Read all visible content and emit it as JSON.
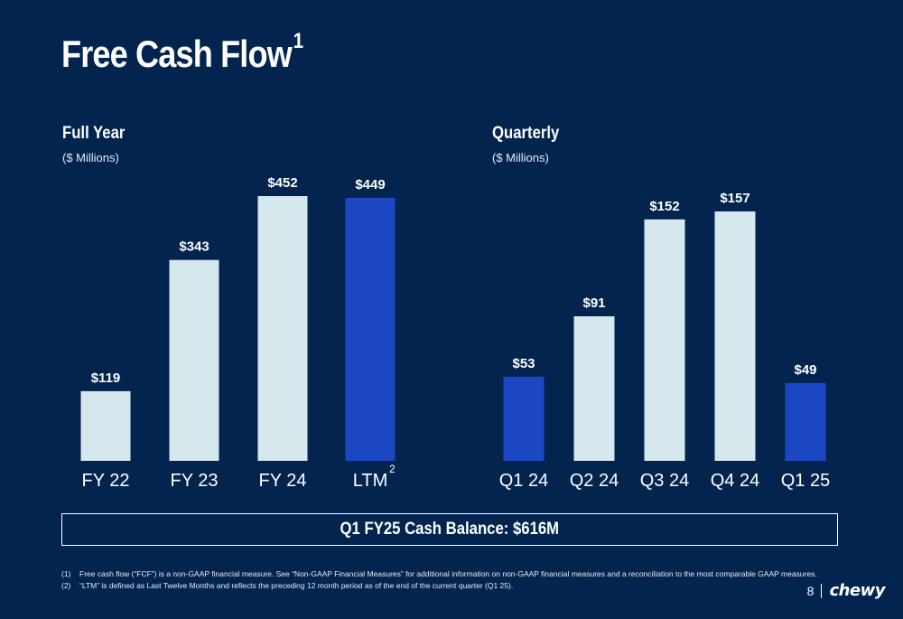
{
  "title": "Free Cash Flow",
  "title_superscript": "1",
  "colors": {
    "background": "#03244f",
    "bar_light": "#d6e7ee",
    "bar_highlight": "#1c47c2",
    "text": "#ffffff"
  },
  "full_year": {
    "title": "Full Year",
    "subtitle": "($ Millions)"
  },
  "quarterly": {
    "title": "Quarterly",
    "subtitle": "($ Millions)"
  },
  "cash_balance": "Q1 FY25 Cash Balance: $616M",
  "footnotes": [
    {
      "num": "(1)",
      "text": "Free cash flow (“FCF”) is a non-GAAP financial measure. See “Non-GAAP Financial Measures” for additional information on non-GAAP financial measures and a reconciliation to the most comparable GAAP measures."
    },
    {
      "num": "(2)",
      "text": "“LTM” is defined as Last Twelve Months and reflects the preceding 12 month period as of the end of the current quarter (Q1 25)."
    }
  ],
  "page_number": "8",
  "logo_text": "chewy",
  "chart_data": [
    {
      "type": "bar",
      "title": "Full Year",
      "subtitle": "($ Millions)",
      "categories": [
        "FY 22",
        "FY 23",
        "FY 24",
        "LTM"
      ],
      "category_superscripts": [
        "",
        "",
        "",
        "2"
      ],
      "values": [
        119,
        343,
        452,
        449
      ],
      "labels": [
        "$119",
        "$343",
        "$452",
        "$449"
      ],
      "highlight": [
        false,
        false,
        false,
        true
      ],
      "ylim": [
        0,
        470
      ],
      "grid": false
    },
    {
      "type": "bar",
      "title": "Quarterly",
      "subtitle": "($ Millions)",
      "categories": [
        "Q1 24",
        "Q2 24",
        "Q3 24",
        "Q4 24",
        "Q1 25"
      ],
      "category_superscripts": [
        "",
        "",
        "",
        "",
        ""
      ],
      "values": [
        53,
        91,
        152,
        157,
        49
      ],
      "labels": [
        "$53",
        "$91",
        "$152",
        "$157",
        "$49"
      ],
      "highlight": [
        true,
        false,
        false,
        false,
        true
      ],
      "ylim": [
        0,
        160
      ],
      "grid": false
    }
  ]
}
